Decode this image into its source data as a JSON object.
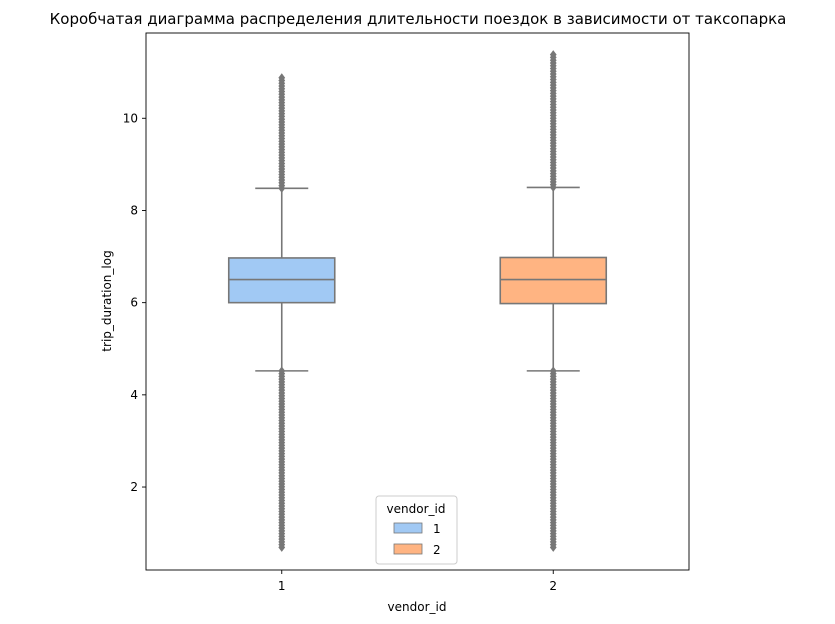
{
  "chart_data": {
    "type": "box",
    "title": "Коробчатая диаграмма распределения длительности поездок в зависимости от таксопарка",
    "xlabel": "vendor_id",
    "ylabel": "trip_duration_log",
    "categories": [
      "1",
      "2"
    ],
    "ylim": [
      0.2,
      11.85
    ],
    "yticks": [
      2,
      4,
      6,
      8,
      10
    ],
    "grid": false,
    "legend": {
      "title": "vendor_id",
      "placement": "lower-center",
      "entries": [
        "1",
        "2"
      ]
    },
    "series": [
      {
        "name": "1",
        "color": "#a1c9f4",
        "stats": {
          "whisker_low": 4.52,
          "q1": 6.0,
          "median": 6.5,
          "q3": 6.97,
          "whisker_high": 8.48
        },
        "outliers_low_range": [
          0.69,
          4.52
        ],
        "outliers_high_range": [
          8.48,
          10.88
        ]
      },
      {
        "name": "2",
        "color": "#ffb482",
        "stats": {
          "whisker_low": 4.52,
          "q1": 5.98,
          "median": 6.5,
          "q3": 6.98,
          "whisker_high": 8.5
        },
        "outliers_low_range": [
          0.69,
          4.52
        ],
        "outliers_high_range": [
          8.5,
          11.38
        ]
      }
    ]
  }
}
